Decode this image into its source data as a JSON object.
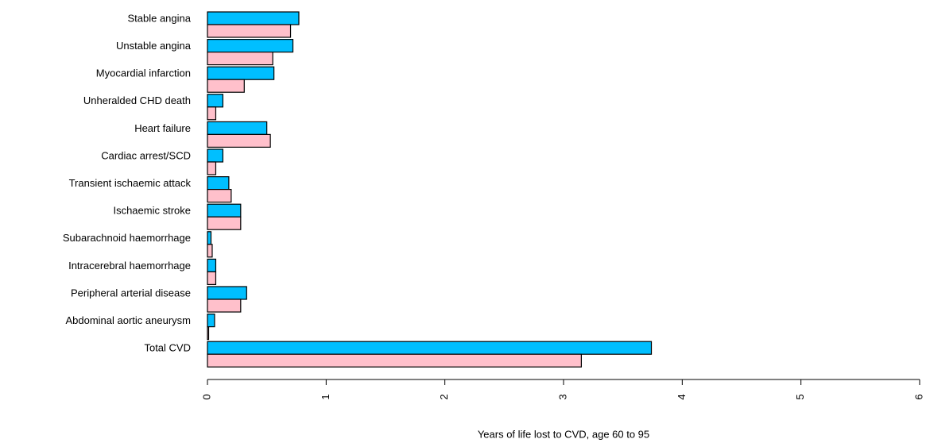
{
  "chart_data": {
    "type": "hbar",
    "xlabel": "Years of life lost to CVD, age 60 to 95",
    "categories": [
      "Stable angina",
      "Unstable angina",
      "Myocardial infarction",
      "Unheralded CHD death",
      "Heart failure",
      "Cardiac arrest/SCD",
      "Transient ischaemic attack",
      "Ischaemic stroke",
      "Subarachnoid haemorrhage",
      "Intracerebral haemorrhage",
      "Peripheral arterial disease",
      "Abdominal aortic aneurysm",
      "Total CVD"
    ],
    "series": [
      {
        "color": "#00bfff",
        "values": [
          0.77,
          0.72,
          0.56,
          0.13,
          0.5,
          0.13,
          0.18,
          0.28,
          0.03,
          0.07,
          0.33,
          0.06,
          3.74
        ]
      },
      {
        "color": "#ffc0cb",
        "values": [
          0.7,
          0.55,
          0.31,
          0.07,
          0.53,
          0.07,
          0.2,
          0.28,
          0.04,
          0.07,
          0.28,
          0.01,
          3.15
        ]
      }
    ],
    "xlim": [
      0,
      6
    ],
    "xticks": [
      0,
      1,
      2,
      3,
      4,
      5,
      6
    ]
  }
}
